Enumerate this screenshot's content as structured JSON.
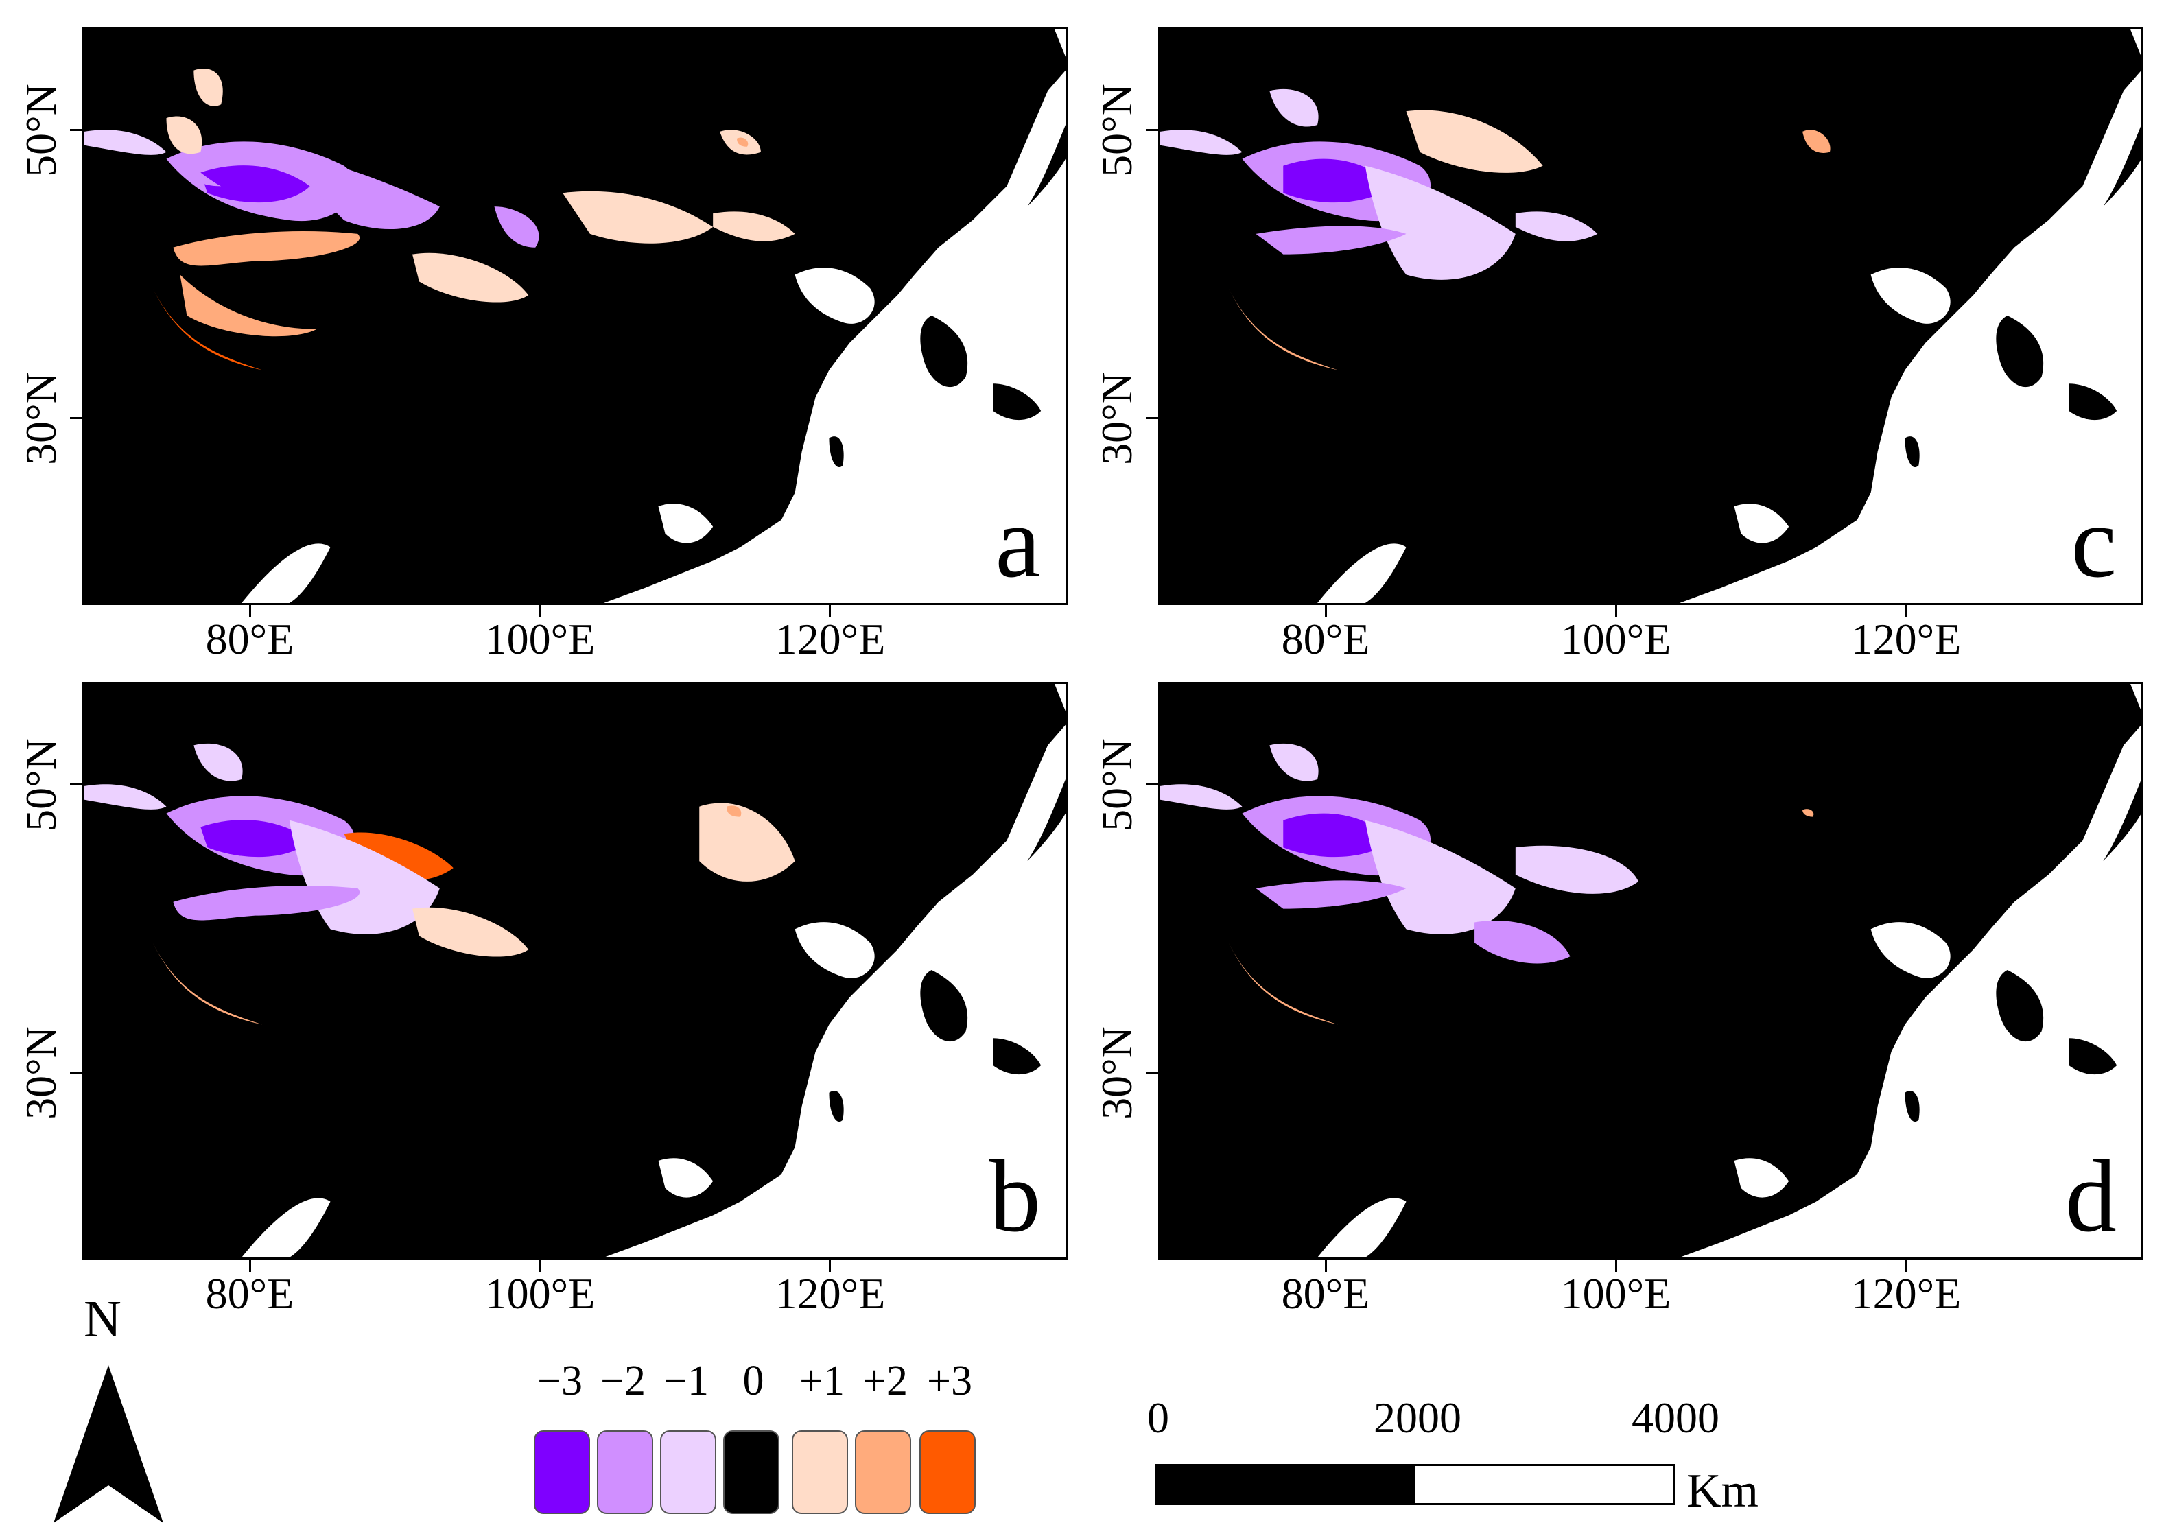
{
  "panels": [
    {
      "id": "a",
      "letter": "a"
    },
    {
      "id": "c",
      "letter": "c"
    },
    {
      "id": "b",
      "letter": "b"
    },
    {
      "id": "d",
      "letter": "d"
    }
  ],
  "axes": {
    "x_ticks": [
      "80°E",
      "100°E",
      "120°E"
    ],
    "y_ticks": [
      "50°N",
      "30°N"
    ]
  },
  "north_label": "N",
  "legend": {
    "items": [
      {
        "label": "−3",
        "color": "#7f00ff"
      },
      {
        "label": "−2",
        "color": "#d08fff"
      },
      {
        "label": "−1",
        "color": "#ecd1ff"
      },
      {
        "label": "0",
        "color": "#000000"
      },
      {
        "label": "+1",
        "color": "#ffdcc8"
      },
      {
        "label": "+2",
        "color": "#ffab7c"
      },
      {
        "label": "+3",
        "color": "#ff5a00"
      }
    ]
  },
  "scale": {
    "labels": [
      "0",
      "2000",
      "4000"
    ],
    "unit": "Km"
  },
  "colors": {
    "land": "#000000",
    "sea": "#ffffff"
  }
}
